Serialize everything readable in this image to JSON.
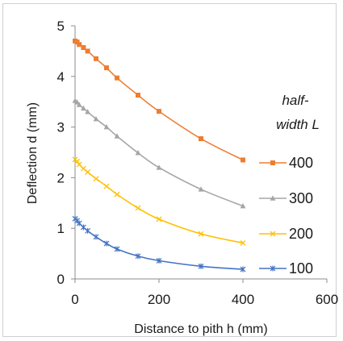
{
  "chart_data": {
    "type": "line",
    "xlabel": "Distance to pith h (mm)",
    "ylabel": "Deflection d (mm)",
    "xlim": [
      0,
      600
    ],
    "ylim": [
      0,
      5
    ],
    "xticks": [
      "0",
      "200",
      "400",
      "600"
    ],
    "yticks": [
      "0",
      "1",
      "2",
      "3",
      "4",
      "5"
    ],
    "grid": false,
    "legend": {
      "title_lines": [
        "half-",
        "width L"
      ],
      "placement": "right"
    },
    "series": [
      {
        "name": "400",
        "color": "#ed7d31",
        "marker": "square",
        "x": [
          0,
          5,
          10,
          20,
          30,
          50,
          75,
          100,
          150,
          200,
          300,
          400
        ],
        "y": [
          4.7,
          4.68,
          4.63,
          4.57,
          4.5,
          4.35,
          4.17,
          3.97,
          3.63,
          3.31,
          2.77,
          2.35
        ]
      },
      {
        "name": "300",
        "color": "#a5a5a5",
        "marker": "triangle",
        "x": [
          0,
          5,
          10,
          20,
          30,
          50,
          75,
          100,
          150,
          200,
          300,
          400
        ],
        "y": [
          3.52,
          3.49,
          3.44,
          3.37,
          3.3,
          3.16,
          3.0,
          2.82,
          2.49,
          2.2,
          1.77,
          1.44
        ]
      },
      {
        "name": "200",
        "color": "#ffc000",
        "marker": "x",
        "x": [
          0,
          5,
          10,
          20,
          30,
          50,
          75,
          100,
          150,
          200,
          300,
          400
        ],
        "y": [
          2.36,
          2.32,
          2.26,
          2.18,
          2.11,
          1.98,
          1.83,
          1.67,
          1.4,
          1.18,
          0.89,
          0.71
        ]
      },
      {
        "name": "100",
        "color": "#4472c4",
        "marker": "star",
        "x": [
          0,
          5,
          10,
          20,
          30,
          50,
          75,
          100,
          150,
          200,
          300,
          400
        ],
        "y": [
          1.19,
          1.15,
          1.1,
          1.02,
          0.95,
          0.83,
          0.7,
          0.59,
          0.45,
          0.36,
          0.25,
          0.19
        ]
      }
    ]
  }
}
